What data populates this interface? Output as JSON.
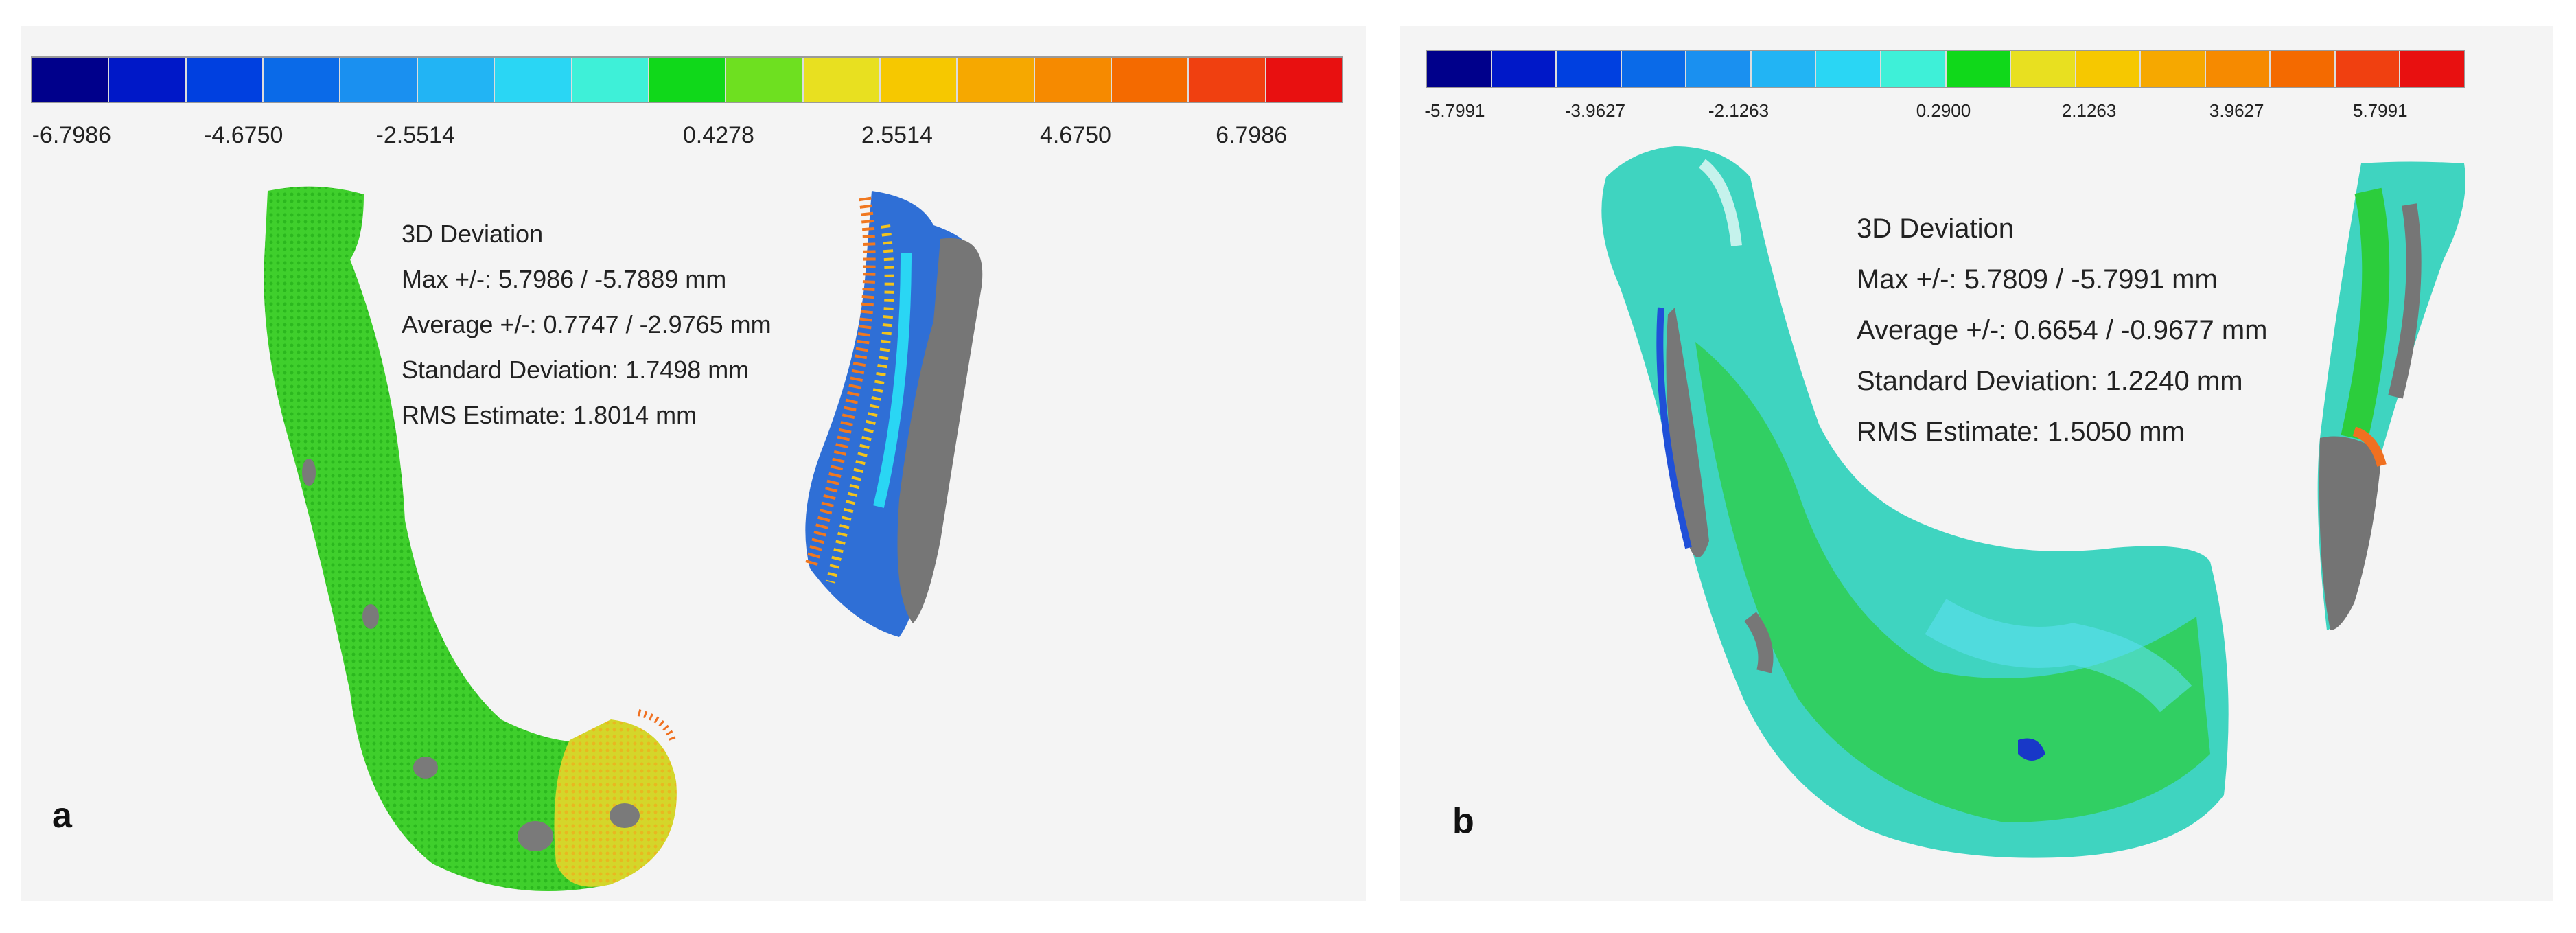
{
  "panel_a": {
    "letter": "a",
    "colorbar": {
      "colors": [
        "#00008b",
        "#0018c8",
        "#0040e0",
        "#0a6ae8",
        "#1a90f0",
        "#22b4f4",
        "#2ad6f4",
        "#3ef0d8",
        "#10d81a",
        "#6ee020",
        "#e8e020",
        "#f6c800",
        "#f6a800",
        "#f68a00",
        "#f46a00",
        "#f04010",
        "#e81010"
      ],
      "ticks": [
        {
          "label": "-6.7986",
          "pos": 0.031
        },
        {
          "label": "-4.6750",
          "pos": 0.162
        },
        {
          "label": "-2.5514",
          "pos": 0.293
        },
        {
          "label": "0.4278",
          "pos": 0.524
        },
        {
          "label": "2.5514",
          "pos": 0.66
        },
        {
          "label": "4.6750",
          "pos": 0.796
        },
        {
          "label": "6.7986",
          "pos": 0.93
        }
      ]
    },
    "stats": {
      "title": "3D Deviation",
      "max": "Max +/-: 5.7986 / -5.7889 mm",
      "average": "Average +/-: 0.7747 / -2.9765 mm",
      "std": "Standard Deviation: 1.7498 mm",
      "rms": "RMS Estimate: 1.8014 mm"
    }
  },
  "panel_b": {
    "letter": "b",
    "colorbar": {
      "colors": [
        "#00008b",
        "#0018c8",
        "#0040e0",
        "#0a6ae8",
        "#1a90f0",
        "#22b4f4",
        "#2ad6f4",
        "#3ef0d8",
        "#10d81a",
        "#e8e020",
        "#f6c800",
        "#f6a800",
        "#f68a00",
        "#f46a00",
        "#f04010",
        "#e81010"
      ],
      "ticks": [
        {
          "label": "-5.7991",
          "pos": 0.028
        },
        {
          "label": "-3.9627",
          "pos": 0.163
        },
        {
          "label": "-2.1263",
          "pos": 0.301
        },
        {
          "label": "0.2900",
          "pos": 0.498
        },
        {
          "label": "2.1263",
          "pos": 0.638
        },
        {
          "label": "3.9627",
          "pos": 0.78
        },
        {
          "label": "5.7991",
          "pos": 0.918
        }
      ]
    },
    "stats": {
      "title": "3D Deviation",
      "max": "Max +/-: 5.7809 / -5.7991 mm",
      "average": "Average +/-: 0.6654 / -0.9677 mm",
      "std": "Standard Deviation: 1.2240 mm",
      "rms": "RMS Estimate: 1.5050 mm"
    }
  }
}
